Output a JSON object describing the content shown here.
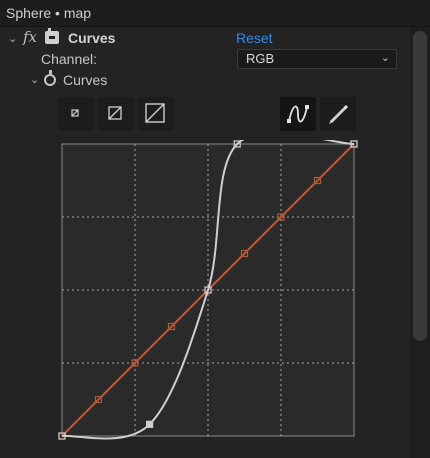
{
  "window": {
    "title": "Sphere • map"
  },
  "effect": {
    "fx_label": "fx",
    "name": "Curves",
    "reset_label": "Reset",
    "channel": {
      "label": "Channel:",
      "value": "RGB"
    },
    "property": {
      "name": "Curves"
    }
  },
  "toolbar": {
    "graph_size_small": "small-graph-icon",
    "graph_size_medium": "medium-graph-icon",
    "graph_size_large": "large-graph-icon",
    "bezier_tool": "bezier-curve-icon",
    "pencil_tool": "pencil-icon",
    "active_tool": "bezier"
  },
  "curves_graph": {
    "grid_divisions": 4,
    "grid_style": "dotted",
    "colors": {
      "grid": "#a8a8a8",
      "red_curve": "#b05a3c",
      "composite_curve": "#cfcfcf",
      "frame": "#8a8a8a",
      "background": "#2a2a2a"
    },
    "red_channel": {
      "points": [
        [
          0,
          0
        ],
        [
          0.125,
          0.125
        ],
        [
          0.25,
          0.25
        ],
        [
          0.375,
          0.375
        ],
        [
          0.5,
          0.5
        ],
        [
          0.625,
          0.625
        ],
        [
          0.75,
          0.75
        ],
        [
          0.875,
          0.875
        ],
        [
          1,
          1
        ]
      ]
    },
    "composite": {
      "points": [
        [
          0,
          0
        ],
        [
          0.3,
          0.04
        ],
        [
          0.5,
          0.5
        ],
        [
          0.6,
          1
        ],
        [
          1,
          1
        ]
      ]
    }
  }
}
